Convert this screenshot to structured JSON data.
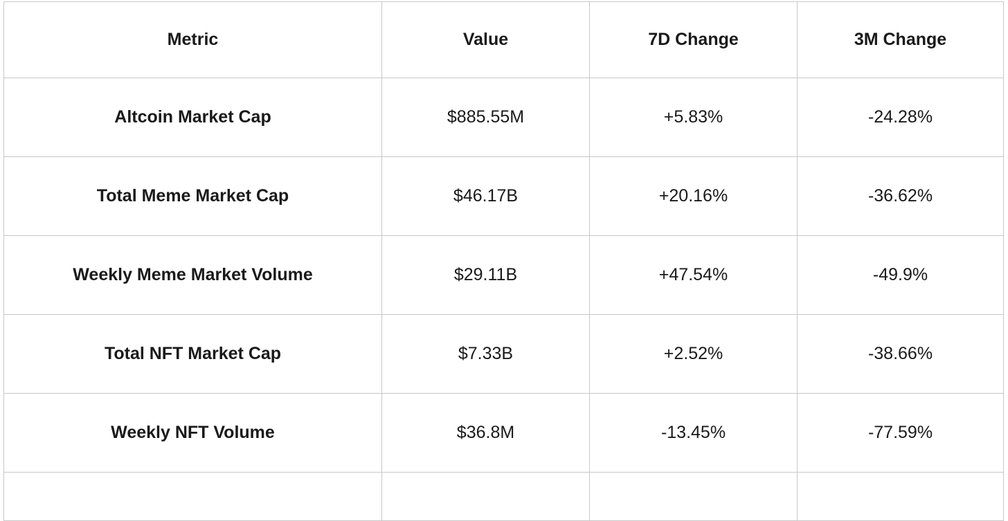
{
  "colors": {
    "background": "#ffffff",
    "border": "#c8c8c8",
    "text": "#1a1a1a"
  },
  "chart_data": {
    "type": "table",
    "title": "",
    "columns": [
      "Metric",
      "Value",
      "7D Change",
      "3M Change"
    ],
    "rows": [
      {
        "metric": "Altcoin Market Cap",
        "value": "$885.55M",
        "change_7d": "+5.83%",
        "change_3m": "-24.28%"
      },
      {
        "metric": "Total Meme Market Cap",
        "value": "$46.17B",
        "change_7d": "+20.16%",
        "change_3m": "-36.62%"
      },
      {
        "metric": "Weekly Meme Market Volume",
        "value": "$29.11B",
        "change_7d": "+47.54%",
        "change_3m": "-49.9%"
      },
      {
        "metric": "Total NFT Market Cap",
        "value": "$7.33B",
        "change_7d": "+2.52%",
        "change_3m": "-38.66%"
      },
      {
        "metric": "Weekly NFT Volume",
        "value": "$36.8M",
        "change_7d": "-13.45%",
        "change_3m": "-77.59%"
      }
    ],
    "layout": {
      "grid": true,
      "header_bold": true,
      "metric_column_bold": true,
      "partial_sixth_row_clipped_at_bottom": true
    }
  }
}
